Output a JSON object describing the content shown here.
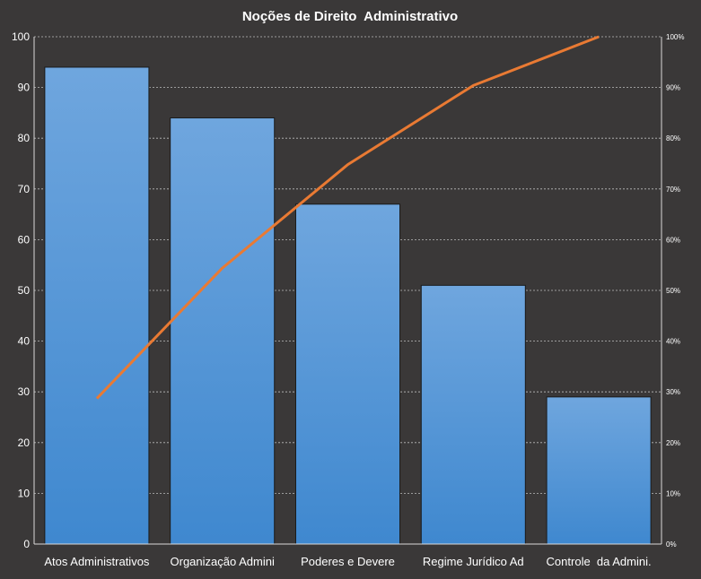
{
  "chart_data": {
    "type": "bar",
    "title": "Noções de Direito  Administrativo",
    "categories": [
      "Atos Administrativos",
      "Organização Admini",
      "Poderes e Devere",
      "Regime Jurídico Ad",
      "Controle  da Admini."
    ],
    "values": [
      94,
      84,
      67,
      51,
      29
    ],
    "cumulative_percent": [
      28.7,
      54.4,
      74.8,
      90.4,
      100
    ],
    "ylim": [
      0,
      100
    ],
    "yticks": [
      "0",
      "10",
      "20",
      "30",
      "40",
      "50",
      "60",
      "70",
      "80",
      "90",
      "100"
    ],
    "y2lim": [
      0,
      100
    ],
    "y2ticks": [
      "0%",
      "10%",
      "20%",
      "30%",
      "40%",
      "50%",
      "60%",
      "70%",
      "80%",
      "90%",
      "100%"
    ],
    "grid": true,
    "legend": "none",
    "colors": {
      "background": "#3a3838",
      "bar_top": "#6fa6de",
      "bar_bottom": "#3f88cf",
      "line": "#e97a33",
      "text": "#ffffff",
      "grid": "#bdbdbd"
    }
  }
}
